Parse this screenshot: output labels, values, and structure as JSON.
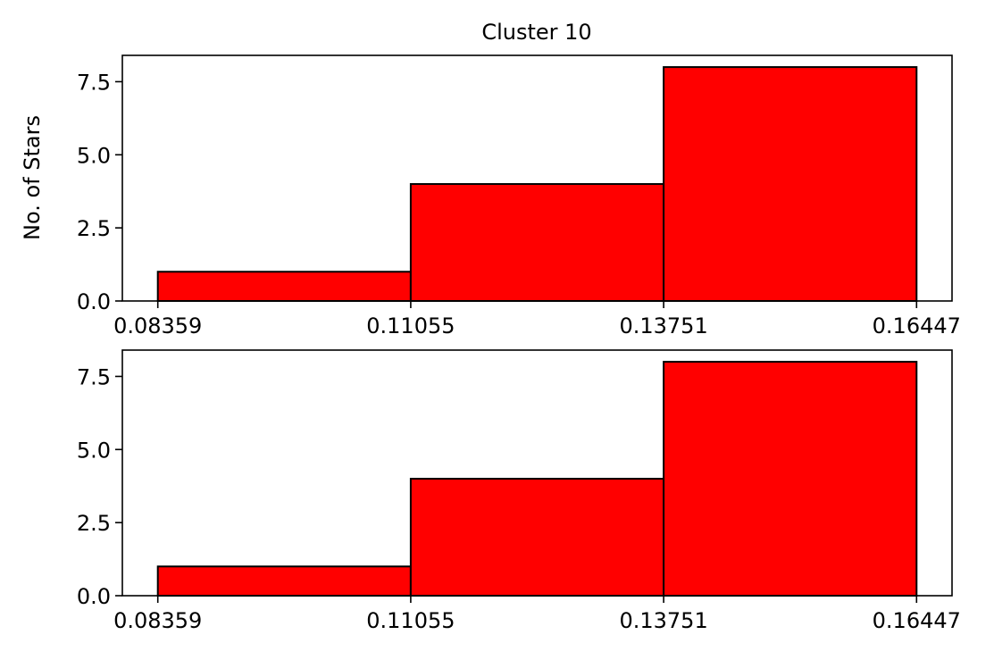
{
  "chart_data": [
    {
      "type": "bar",
      "title": "Cluster 10",
      "xlabel": "",
      "ylabel": "No. of Stars",
      "bin_edges": [
        0.08359,
        0.11055,
        0.13751,
        0.16447
      ],
      "values": [
        1,
        4,
        8
      ],
      "xticks": [
        "0.08359",
        "0.11055",
        "0.13751",
        "0.16447"
      ],
      "yticks": [
        "0.0",
        "2.5",
        "5.0",
        "7.5"
      ],
      "ylim": [
        0,
        8.4
      ],
      "xlim": [
        0.07981,
        0.16825
      ],
      "bar_color": "#ff0000",
      "edge_color": "#000000",
      "grid": false
    },
    {
      "type": "bar",
      "title": "",
      "xlabel": "",
      "ylabel": "",
      "bin_edges": [
        0.08359,
        0.11055,
        0.13751,
        0.16447
      ],
      "values": [
        1,
        4,
        8
      ],
      "xticks": [
        "0.08359",
        "0.11055",
        "0.13751",
        "0.16447"
      ],
      "yticks": [
        "0.0",
        "2.5",
        "5.0",
        "7.5"
      ],
      "ylim": [
        0,
        8.4
      ],
      "xlim": [
        0.07981,
        0.16825
      ],
      "bar_color": "#ff0000",
      "edge_color": "#000000",
      "grid": false
    }
  ]
}
